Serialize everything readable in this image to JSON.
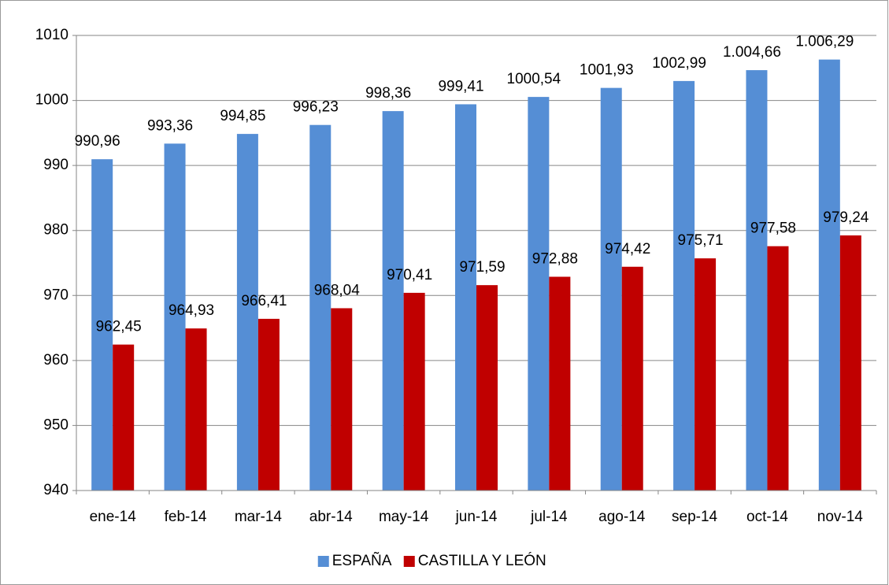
{
  "chart_data": {
    "type": "bar",
    "categories": [
      "ene-14",
      "feb-14",
      "mar-14",
      "abr-14",
      "may-14",
      "jun-14",
      "jul-14",
      "ago-14",
      "sep-14",
      "oct-14",
      "nov-14"
    ],
    "series": [
      {
        "name": "ESPAÑA",
        "color": "#558ed5",
        "values": [
          990.96,
          993.36,
          994.85,
          996.23,
          998.36,
          999.41,
          1000.54,
          1001.93,
          1002.99,
          1004.66,
          1006.29
        ],
        "value_labels": [
          "990,96",
          "993,36",
          "994,85",
          "996,23",
          "998,36",
          "999,41",
          "1000,54",
          "1001,93",
          "1002,99",
          "1.004,66",
          "1.006,29"
        ]
      },
      {
        "name": "CASTILLA Y LEÓN",
        "color": "#c00000",
        "values": [
          962.45,
          964.93,
          966.41,
          968.04,
          970.41,
          971.59,
          972.88,
          974.42,
          975.71,
          977.58,
          979.24
        ],
        "value_labels": [
          "962,45",
          "964,93",
          "966,41",
          "968,04",
          "970,41",
          "971,59",
          "972,88",
          "974,42",
          "975,71",
          "977,58",
          "979,24"
        ]
      }
    ],
    "ylim": [
      940,
      1010
    ],
    "yticks": [
      940,
      950,
      960,
      970,
      980,
      990,
      1000,
      1010
    ],
    "grid": true,
    "legend": "bottom"
  }
}
